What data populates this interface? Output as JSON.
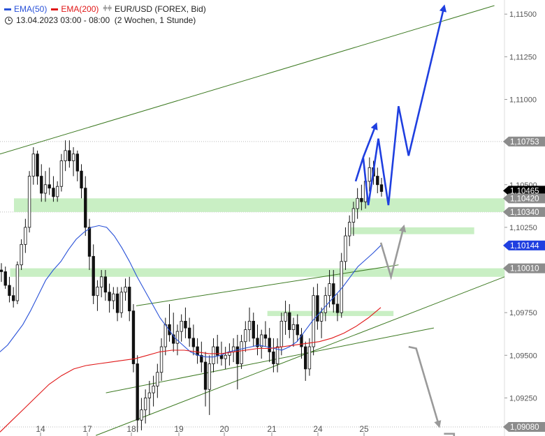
{
  "legend": {
    "ema50": {
      "label": "EMA(50)",
      "color": "#2a52d8"
    },
    "ema200": {
      "label": "EMA(200)",
      "color": "#e01818"
    },
    "instrument": "EUR/USD (FOREX, Bid)",
    "instrument_icon": "candlestick-icon",
    "period": "13.04.2023 03:00 - 08:00  (2 Wochen, 1 Stunde)",
    "period_icon": "clock-icon"
  },
  "colors": {
    "candle": "#111111",
    "trend_line": "#3d7a22",
    "zone": "#c9efc4",
    "forecast_blue": "#1f3fe0",
    "forecast_gray": "#9a9a9a",
    "grid_dot": "#bbbbbb"
  },
  "chart_data": {
    "type": "candlestick",
    "timeframe": "1h",
    "instrument": "EUR/USD",
    "ylim": [
      1.0908,
      1.1155
    ],
    "x_ticks": [
      "14",
      "17",
      "18",
      "19",
      "20",
      "21",
      "24",
      "25"
    ],
    "y_ticks": [
      "1,11500",
      "1,11250",
      "1,11000",
      "1,10500",
      "1,10250",
      "1,09750",
      "1,09500",
      "1,09250"
    ],
    "price_tags": [
      {
        "label": "1,10753",
        "value": 1.10753,
        "style": "gray"
      },
      {
        "label": "1,10465",
        "value": 1.10465,
        "style": "black"
      },
      {
        "label": "1,10420",
        "value": 1.1042,
        "style": "gray"
      },
      {
        "label": "1,10340",
        "value": 1.1034,
        "style": "gray"
      },
      {
        "label": "1,10144",
        "value": 1.10144,
        "style": "blue"
      },
      {
        "label": "1,10010",
        "value": 1.1001,
        "style": "gray"
      },
      {
        "label": "1,09080",
        "value": 1.0908,
        "style": "gray"
      }
    ],
    "dotted_levels": [
      1.10753,
      1.1034,
      1.0908
    ],
    "zones": [
      {
        "low": 1.1034,
        "high": 1.1042,
        "start": 0.0,
        "end": 1.0
      },
      {
        "low": 1.1021,
        "high": 1.1025,
        "start": 0.69,
        "end": 0.94
      },
      {
        "low": 1.0996,
        "high": 1.1001,
        "start": 0.02,
        "end": 1.0
      },
      {
        "low": 1.0973,
        "high": 1.0976,
        "start": 0.53,
        "end": 0.78
      }
    ],
    "trend_lines": [
      {
        "from": [
          0.0,
          1.1068
        ],
        "to": [
          0.98,
          1.1155
        ]
      },
      {
        "from": [
          0.27,
          1.0979
        ],
        "to": [
          0.79,
          1.1003
        ]
      },
      {
        "from": [
          0.19,
          1.0903
        ],
        "to": [
          1.0,
          1.0996
        ]
      },
      {
        "from": [
          0.21,
          1.0928
        ],
        "to": [
          0.86,
          1.0966
        ]
      }
    ],
    "candles": [
      [
        1.1,
        1.1004,
        1.0993,
        1.0999
      ],
      [
        1.0999,
        1.1002,
        1.0989,
        1.0991
      ],
      [
        1.0991,
        1.0996,
        1.0981,
        1.0985
      ],
      [
        1.0985,
        1.099,
        1.0978,
        1.0982
      ],
      [
        1.0982,
        1.1005,
        1.098,
        1.1003
      ],
      [
        1.1003,
        1.1018,
        1.1,
        1.1015
      ],
      [
        1.1015,
        1.103,
        1.101,
        1.1025
      ],
      [
        1.1025,
        1.1058,
        1.1022,
        1.1055
      ],
      [
        1.1055,
        1.1072,
        1.105,
        1.1068
      ],
      [
        1.1068,
        1.107,
        1.105,
        1.1055
      ],
      [
        1.1055,
        1.1062,
        1.104,
        1.1045
      ],
      [
        1.1045,
        1.1058,
        1.104,
        1.105
      ],
      [
        1.105,
        1.106,
        1.1044,
        1.1048
      ],
      [
        1.1048,
        1.1055,
        1.104,
        1.1043
      ],
      [
        1.1043,
        1.1052,
        1.104,
        1.1049
      ],
      [
        1.1049,
        1.1068,
        1.1046,
        1.1064
      ],
      [
        1.1064,
        1.1076,
        1.1058,
        1.107
      ],
      [
        1.107,
        1.1076,
        1.106,
        1.1064
      ],
      [
        1.1064,
        1.1072,
        1.1055,
        1.1068
      ],
      [
        1.1068,
        1.107,
        1.1052,
        1.1058
      ],
      [
        1.1058,
        1.1062,
        1.1042,
        1.1048
      ],
      [
        1.1048,
        1.1055,
        1.102,
        1.1025
      ],
      [
        1.1025,
        1.103,
        1.1,
        1.1008
      ],
      [
        1.1008,
        1.1015,
        1.098,
        1.0985
      ],
      [
        1.0985,
        1.0994,
        1.0976,
        1.099
      ],
      [
        1.099,
        1.1,
        1.0984,
        1.0996
      ],
      [
        1.0996,
        1.1,
        1.0982,
        1.0987
      ],
      [
        1.0987,
        1.0992,
        1.0975,
        1.0982
      ],
      [
        1.0982,
        1.099,
        1.0977,
        1.0986
      ],
      [
        1.0986,
        1.099,
        1.097,
        1.0975
      ],
      [
        1.0975,
        1.099,
        1.0972,
        1.0987
      ],
      [
        1.0987,
        1.0995,
        1.0982,
        1.099
      ],
      [
        1.099,
        1.0996,
        1.097,
        1.0976
      ],
      [
        1.0976,
        1.098,
        1.094,
        1.0945
      ],
      [
        1.0945,
        1.095,
        1.0905,
        1.0912
      ],
      [
        1.0912,
        1.0925,
        1.0906,
        1.0918
      ],
      [
        1.0918,
        1.093,
        1.091,
        1.0925
      ],
      [
        1.0925,
        1.0935,
        1.0915,
        1.0928
      ],
      [
        1.0928,
        1.0938,
        1.092,
        1.0932
      ],
      [
        1.0932,
        1.0945,
        1.0925,
        1.094
      ],
      [
        1.094,
        1.096,
        1.0935,
        1.0955
      ],
      [
        1.0955,
        1.0972,
        1.095,
        1.0968
      ],
      [
        1.0968,
        1.098,
        1.0958,
        1.0962
      ],
      [
        1.0962,
        1.0975,
        1.0952,
        1.0957
      ],
      [
        1.0957,
        1.0968,
        1.095,
        1.0964
      ],
      [
        1.0964,
        1.0974,
        1.0958,
        1.097
      ],
      [
        1.097,
        1.0978,
        1.096,
        1.0966
      ],
      [
        1.0966,
        1.0972,
        1.0955,
        1.096
      ],
      [
        1.096,
        1.0968,
        1.095,
        1.0955
      ],
      [
        1.0955,
        1.096,
        1.0945,
        1.095
      ],
      [
        1.095,
        1.0958,
        1.094,
        1.0946
      ],
      [
        1.0946,
        1.0952,
        1.092,
        1.093
      ],
      [
        1.093,
        1.095,
        1.0915,
        1.0945
      ],
      [
        1.0945,
        1.096,
        1.094,
        1.0955
      ],
      [
        1.0955,
        1.0962,
        1.0945,
        1.095
      ],
      [
        1.095,
        1.0958,
        1.0944,
        1.0948
      ],
      [
        1.0948,
        1.0955,
        1.0942,
        1.095
      ],
      [
        1.095,
        1.0957,
        1.0944,
        1.0952
      ],
      [
        1.0952,
        1.096,
        1.0946,
        1.0955
      ],
      [
        1.0955,
        1.0962,
        1.093,
        1.0945
      ],
      [
        1.0945,
        1.0962,
        1.0942,
        1.0958
      ],
      [
        1.0958,
        1.097,
        1.0952,
        1.0965
      ],
      [
        1.0965,
        1.0978,
        1.0958,
        1.097
      ],
      [
        1.097,
        1.0975,
        1.0955,
        1.096
      ],
      [
        1.096,
        1.0968,
        1.095,
        1.0955
      ],
      [
        1.0955,
        1.0965,
        1.0948,
        1.0962
      ],
      [
        1.0962,
        1.097,
        1.0955,
        1.096
      ],
      [
        1.096,
        1.0966,
        1.0946,
        1.0952
      ],
      [
        1.0952,
        1.096,
        1.094,
        1.0945
      ],
      [
        1.0945,
        1.096,
        1.094,
        1.0955
      ],
      [
        1.0955,
        1.0975,
        1.095,
        1.097
      ],
      [
        1.097,
        1.0982,
        1.0962,
        1.0975
      ],
      [
        1.0975,
        1.098,
        1.096,
        1.0965
      ],
      [
        1.0965,
        1.0972,
        1.0955,
        1.0968
      ],
      [
        1.0968,
        1.0974,
        1.0958,
        1.0962
      ],
      [
        1.0962,
        1.0966,
        1.0948,
        1.0955
      ],
      [
        1.0955,
        1.0958,
        1.0935,
        1.0942
      ],
      [
        1.0942,
        1.096,
        1.0938,
        1.0955
      ],
      [
        1.0955,
        1.099,
        1.095,
        1.0985
      ],
      [
        1.0985,
        1.0992,
        1.0965,
        1.097
      ],
      [
        1.097,
        1.0978,
        1.096,
        1.0975
      ],
      [
        1.0975,
        1.099,
        1.097,
        1.0985
      ],
      [
        1.0985,
        1.1,
        1.0978,
        1.0992
      ],
      [
        1.0992,
        1.1,
        1.0975,
        1.098
      ],
      [
        1.098,
        1.0986,
        1.097,
        1.0975
      ],
      [
        1.0975,
        1.101,
        1.0972,
        1.1005
      ],
      [
        1.1005,
        1.1025,
        1.1,
        1.102
      ],
      [
        1.102,
        1.1032,
        1.1014,
        1.1028
      ],
      [
        1.1028,
        1.104,
        1.102,
        1.1036
      ],
      [
        1.1036,
        1.1048,
        1.103,
        1.1042
      ],
      [
        1.1042,
        1.105,
        1.1035,
        1.104
      ],
      [
        1.104,
        1.1056,
        1.1036,
        1.1052
      ],
      [
        1.1052,
        1.1066,
        1.1046,
        1.106
      ],
      [
        1.106,
        1.1064,
        1.105,
        1.1055
      ],
      [
        1.1055,
        1.106,
        1.1045,
        1.105
      ],
      [
        1.105,
        1.1054,
        1.1043,
        1.1046
      ]
    ],
    "ema50": [
      1.0952,
      1.0956,
      1.0962,
      1.0968,
      1.0976,
      1.0985,
      1.0994,
      1.1,
      1.1005,
      1.1012,
      1.1018,
      1.1022,
      1.1025,
      1.1026,
      1.1025,
      1.102,
      1.1013,
      1.1005,
      1.0996,
      1.0988,
      1.098,
      1.0972,
      1.0966,
      1.096,
      1.0956,
      1.0952,
      1.095,
      1.0949,
      1.0949,
      1.095,
      1.0952,
      1.0953,
      1.0954,
      1.0955,
      1.0956,
      1.0955,
      1.0954,
      1.0953,
      1.0955,
      1.0958,
      1.0964,
      1.097,
      1.0975,
      1.098,
      1.0985,
      1.099,
      1.0996,
      1.1002,
      1.1006,
      1.101,
      1.10144
    ],
    "ema200": [
      1.0905,
      1.0912,
      1.0919,
      1.0926,
      1.0933,
      1.0938,
      1.0942,
      1.0944,
      1.0945,
      1.0946,
      1.0947,
      1.0948,
      1.095,
      1.0952,
      1.0953,
      1.0953,
      1.0952,
      1.0951,
      1.0951,
      1.0952,
      1.0953,
      1.0954,
      1.0954,
      1.0955,
      1.0956,
      1.0957,
      1.0958,
      1.096,
      1.0963,
      1.0967,
      1.0972,
      1.0978
    ],
    "forecast_paths": [
      {
        "style": "blue",
        "points": [
          [
            0.705,
            1.1052
          ],
          [
            0.72,
            1.1066
          ],
          [
            0.73,
            1.1038
          ],
          [
            0.75,
            1.1077
          ],
          [
            0.77,
            1.1038
          ],
          [
            0.79,
            1.1096
          ],
          [
            0.81,
            1.1067
          ],
          [
            0.88,
            1.1154
          ]
        ]
      },
      {
        "style": "blue",
        "points": [
          [
            0.72,
            1.1066
          ],
          [
            0.745,
            1.1085
          ]
        ]
      },
      {
        "style": "gray",
        "points": [
          [
            0.755,
            1.1016
          ],
          [
            0.775,
            1.0996
          ],
          [
            0.8,
            1.1025
          ]
        ]
      },
      {
        "style": "gray",
        "points": [
          [
            0.81,
            1.0955
          ],
          [
            0.825,
            1.0954
          ],
          [
            0.87,
            1.0909
          ]
        ]
      },
      {
        "style": "gray",
        "points": [
          [
            0.88,
            1.0904
          ],
          [
            0.9,
            1.0904
          ],
          [
            0.9,
            1.0902
          ]
        ]
      }
    ]
  }
}
